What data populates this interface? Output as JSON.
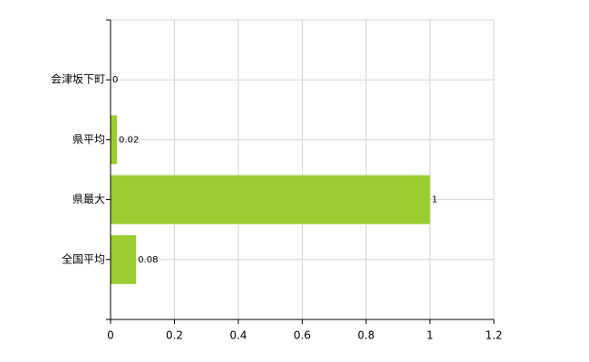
{
  "chart_data": {
    "type": "bar",
    "orientation": "horizontal",
    "categories": [
      "会津坂下町",
      "県平均",
      "県最大",
      "全国平均"
    ],
    "values": [
      0,
      0.02,
      1,
      0.08
    ],
    "color": "#9acd32",
    "xlim": [
      0,
      1.2
    ],
    "xticks": [
      0,
      0.2,
      0.4,
      0.6,
      0.8,
      1,
      1.2
    ],
    "grid": true
  }
}
